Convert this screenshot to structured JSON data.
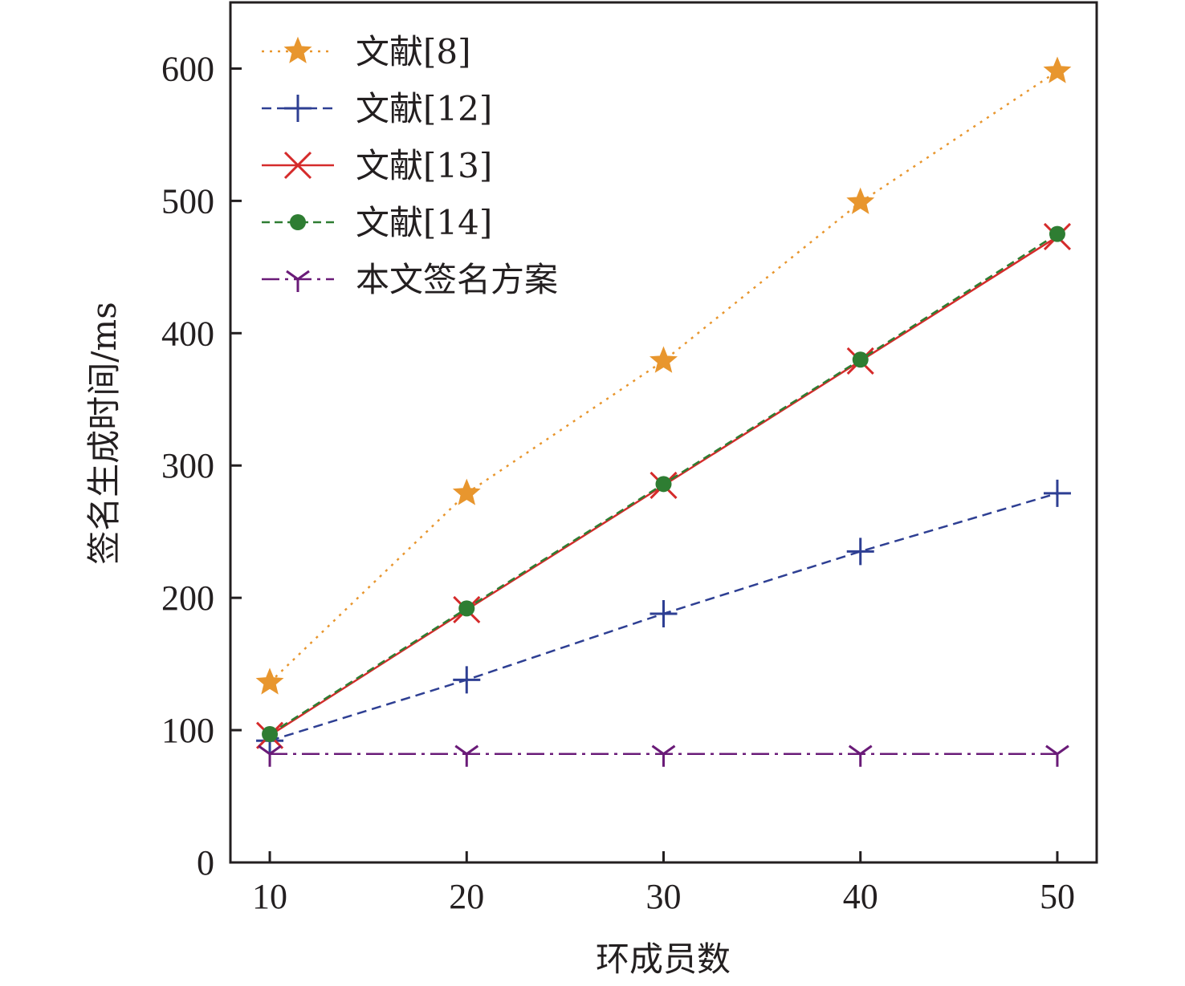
{
  "chart_data": {
    "type": "line",
    "title": "",
    "xlabel": "环成员数",
    "ylabel": "签名生成时间/ms",
    "x": [
      10,
      20,
      30,
      40,
      50
    ],
    "xlim": [
      8,
      52
    ],
    "ylim": [
      0,
      650
    ],
    "xticks": [
      10,
      20,
      30,
      40,
      50
    ],
    "yticks": [
      0,
      100,
      200,
      300,
      400,
      500,
      600
    ],
    "grid": false,
    "legend_position": "top-left",
    "series": [
      {
        "name": "文献[8]",
        "values": [
          136,
          279,
          379,
          499,
          598
        ],
        "color": "#e8962e",
        "dash": "3,7",
        "marker": "star"
      },
      {
        "name": "文献[12]",
        "values": [
          92,
          138,
          188,
          235,
          279
        ],
        "color": "#2e3f93",
        "dash": "12,7",
        "marker": "plus"
      },
      {
        "name": "文献[13]",
        "values": [
          96,
          191,
          285,
          379,
          473
        ],
        "color": "#d52b2b",
        "dash": "",
        "marker": "x"
      },
      {
        "name": "文献[14]",
        "values": [
          97,
          192,
          286,
          380,
          475
        ],
        "color": "#2e7d32",
        "dash": "10,6",
        "marker": "dot"
      },
      {
        "name": "本文签名方案",
        "values": [
          82,
          82,
          82,
          82,
          82
        ],
        "color": "#6a1b78",
        "dash": "22,7,4,7",
        "marker": "tri"
      }
    ]
  }
}
